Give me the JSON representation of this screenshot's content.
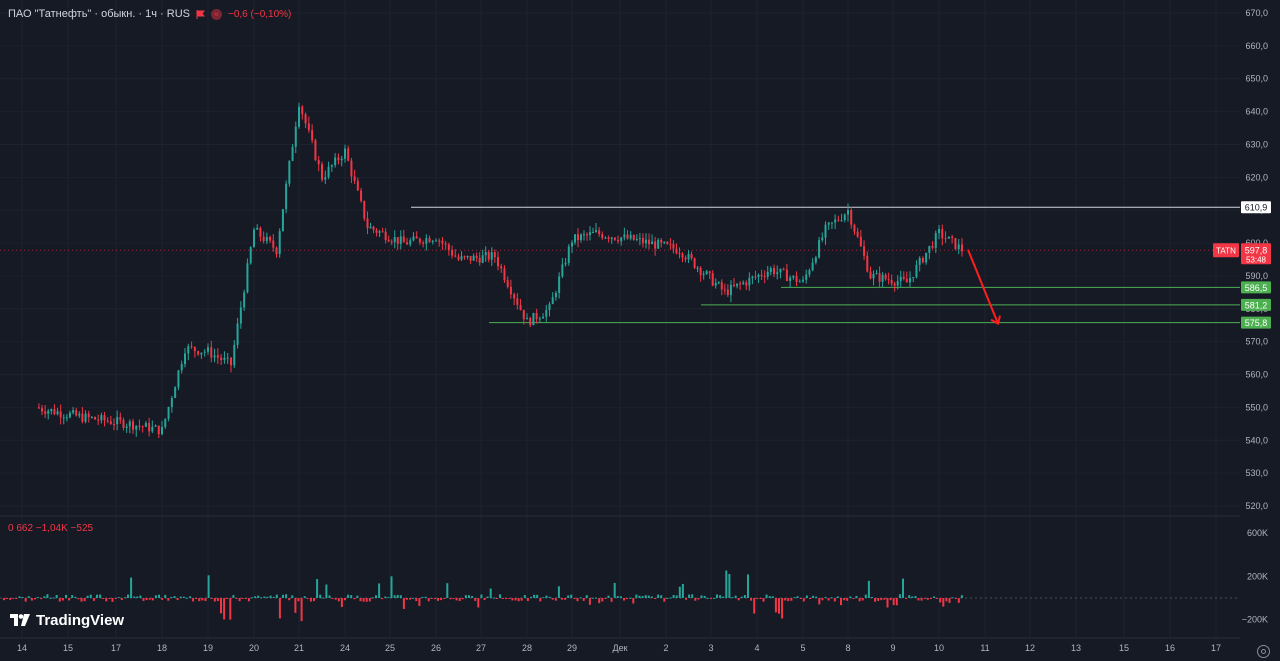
{
  "header": {
    "title": "ПАО \"Татнефть\" · обыкн. · 1ч · RUS",
    "change": "−0,6 (−0,10%)"
  },
  "volume_legend": "0  662  −1,04K  −525",
  "brand": "TradingView",
  "colors": {
    "up": "#26a69a",
    "down": "#f23645",
    "level": "#4caf50",
    "resistance": "#d1d4dc",
    "arrow": "#ff1e1e",
    "background": "#161a25"
  },
  "icons": {
    "flag": "flag-icon",
    "change": "change-icon",
    "logo": "tradingview-logo-icon",
    "settings": "gear-icon"
  },
  "chart_data": {
    "type": "candlestick",
    "title": "ПАО \"Татнефть\" · обыкн. · 1ч · RUS",
    "price_axis": {
      "ticks": [
        670,
        660,
        650,
        640,
        630,
        620,
        610,
        600,
        590,
        580,
        570,
        560,
        550,
        540,
        530,
        520
      ],
      "tick_labels": [
        "670,0",
        "660,0",
        "650,0",
        "640,0",
        "630,0",
        "620,0",
        "610,0",
        "600,0",
        "590,0",
        "580,0",
        "570,0",
        "560,0",
        "550,0",
        "540,0",
        "530,0",
        "520,0"
      ],
      "range": [
        518,
        671
      ]
    },
    "volume_axis": {
      "tick_labels": [
        "600K",
        "200K",
        "−200K"
      ],
      "ticks": [
        600,
        200,
        -200
      ]
    },
    "time_axis": {
      "tick_labels": [
        "14",
        "15",
        "17",
        "18",
        "19",
        "20",
        "21",
        "24",
        "25",
        "26",
        "27",
        "28",
        "29",
        "Дек",
        "2",
        "3",
        "4",
        "5",
        "8",
        "9",
        "10",
        "11",
        "12",
        "13",
        "15",
        "16",
        "17"
      ]
    },
    "price_path": [
      {
        "date": "14",
        "price": 550
      },
      {
        "date": "15",
        "price": 547
      },
      {
        "date": "17",
        "price": 545
      },
      {
        "date": "18",
        "price": 543
      },
      {
        "date": "18",
        "price": 568
      },
      {
        "date": "19",
        "price": 567
      },
      {
        "date": "19",
        "price": 563
      },
      {
        "date": "20",
        "price": 604
      },
      {
        "date": "20",
        "price": 598
      },
      {
        "date": "21",
        "price": 643
      },
      {
        "date": "21",
        "price": 620
      },
      {
        "date": "24",
        "price": 628
      },
      {
        "date": "24",
        "price": 605
      },
      {
        "date": "25",
        "price": 600
      },
      {
        "date": "26",
        "price": 602
      },
      {
        "date": "26",
        "price": 595
      },
      {
        "date": "27",
        "price": 596
      },
      {
        "date": "28",
        "price": 576
      },
      {
        "date": "28",
        "price": 580
      },
      {
        "date": "29",
        "price": 601
      },
      {
        "date": "29",
        "price": 603
      },
      {
        "date": "Дек",
        "price": 601
      },
      {
        "date": "2",
        "price": 598
      },
      {
        "date": "3",
        "price": 585
      },
      {
        "date": "4",
        "price": 592
      },
      {
        "date": "5",
        "price": 588
      },
      {
        "date": "5",
        "price": 604
      },
      {
        "date": "8",
        "price": 610
      },
      {
        "date": "8",
        "price": 590
      },
      {
        "date": "9",
        "price": 588
      },
      {
        "date": "10",
        "price": 603
      },
      {
        "date": "10",
        "price": 598
      }
    ],
    "volumes_k": [
      60,
      40,
      -30,
      -50,
      300,
      -180,
      380,
      -260,
      450,
      -240,
      200,
      -150,
      240,
      -120,
      160,
      -90,
      140,
      -110,
      120,
      -80,
      150,
      -60,
      180,
      -160,
      260,
      -190,
      150,
      -100,
      180,
      -120,
      200,
      -80
    ],
    "levels": [
      {
        "label": "610,9",
        "price": 610.9,
        "style": "resistance"
      },
      {
        "label": "586,5",
        "price": 586.5,
        "style": "support"
      },
      {
        "label": "581,2",
        "price": 581.2,
        "style": "support"
      },
      {
        "label": "575,8",
        "price": 575.8,
        "style": "support"
      }
    ],
    "current": {
      "symbol": "TATN",
      "price": 597.8,
      "price_label": "597,8",
      "countdown": "53:48"
    },
    "projection": {
      "from": {
        "date": "10",
        "price": 598
      },
      "to": {
        "date": "11",
        "price": 575.8
      }
    }
  }
}
